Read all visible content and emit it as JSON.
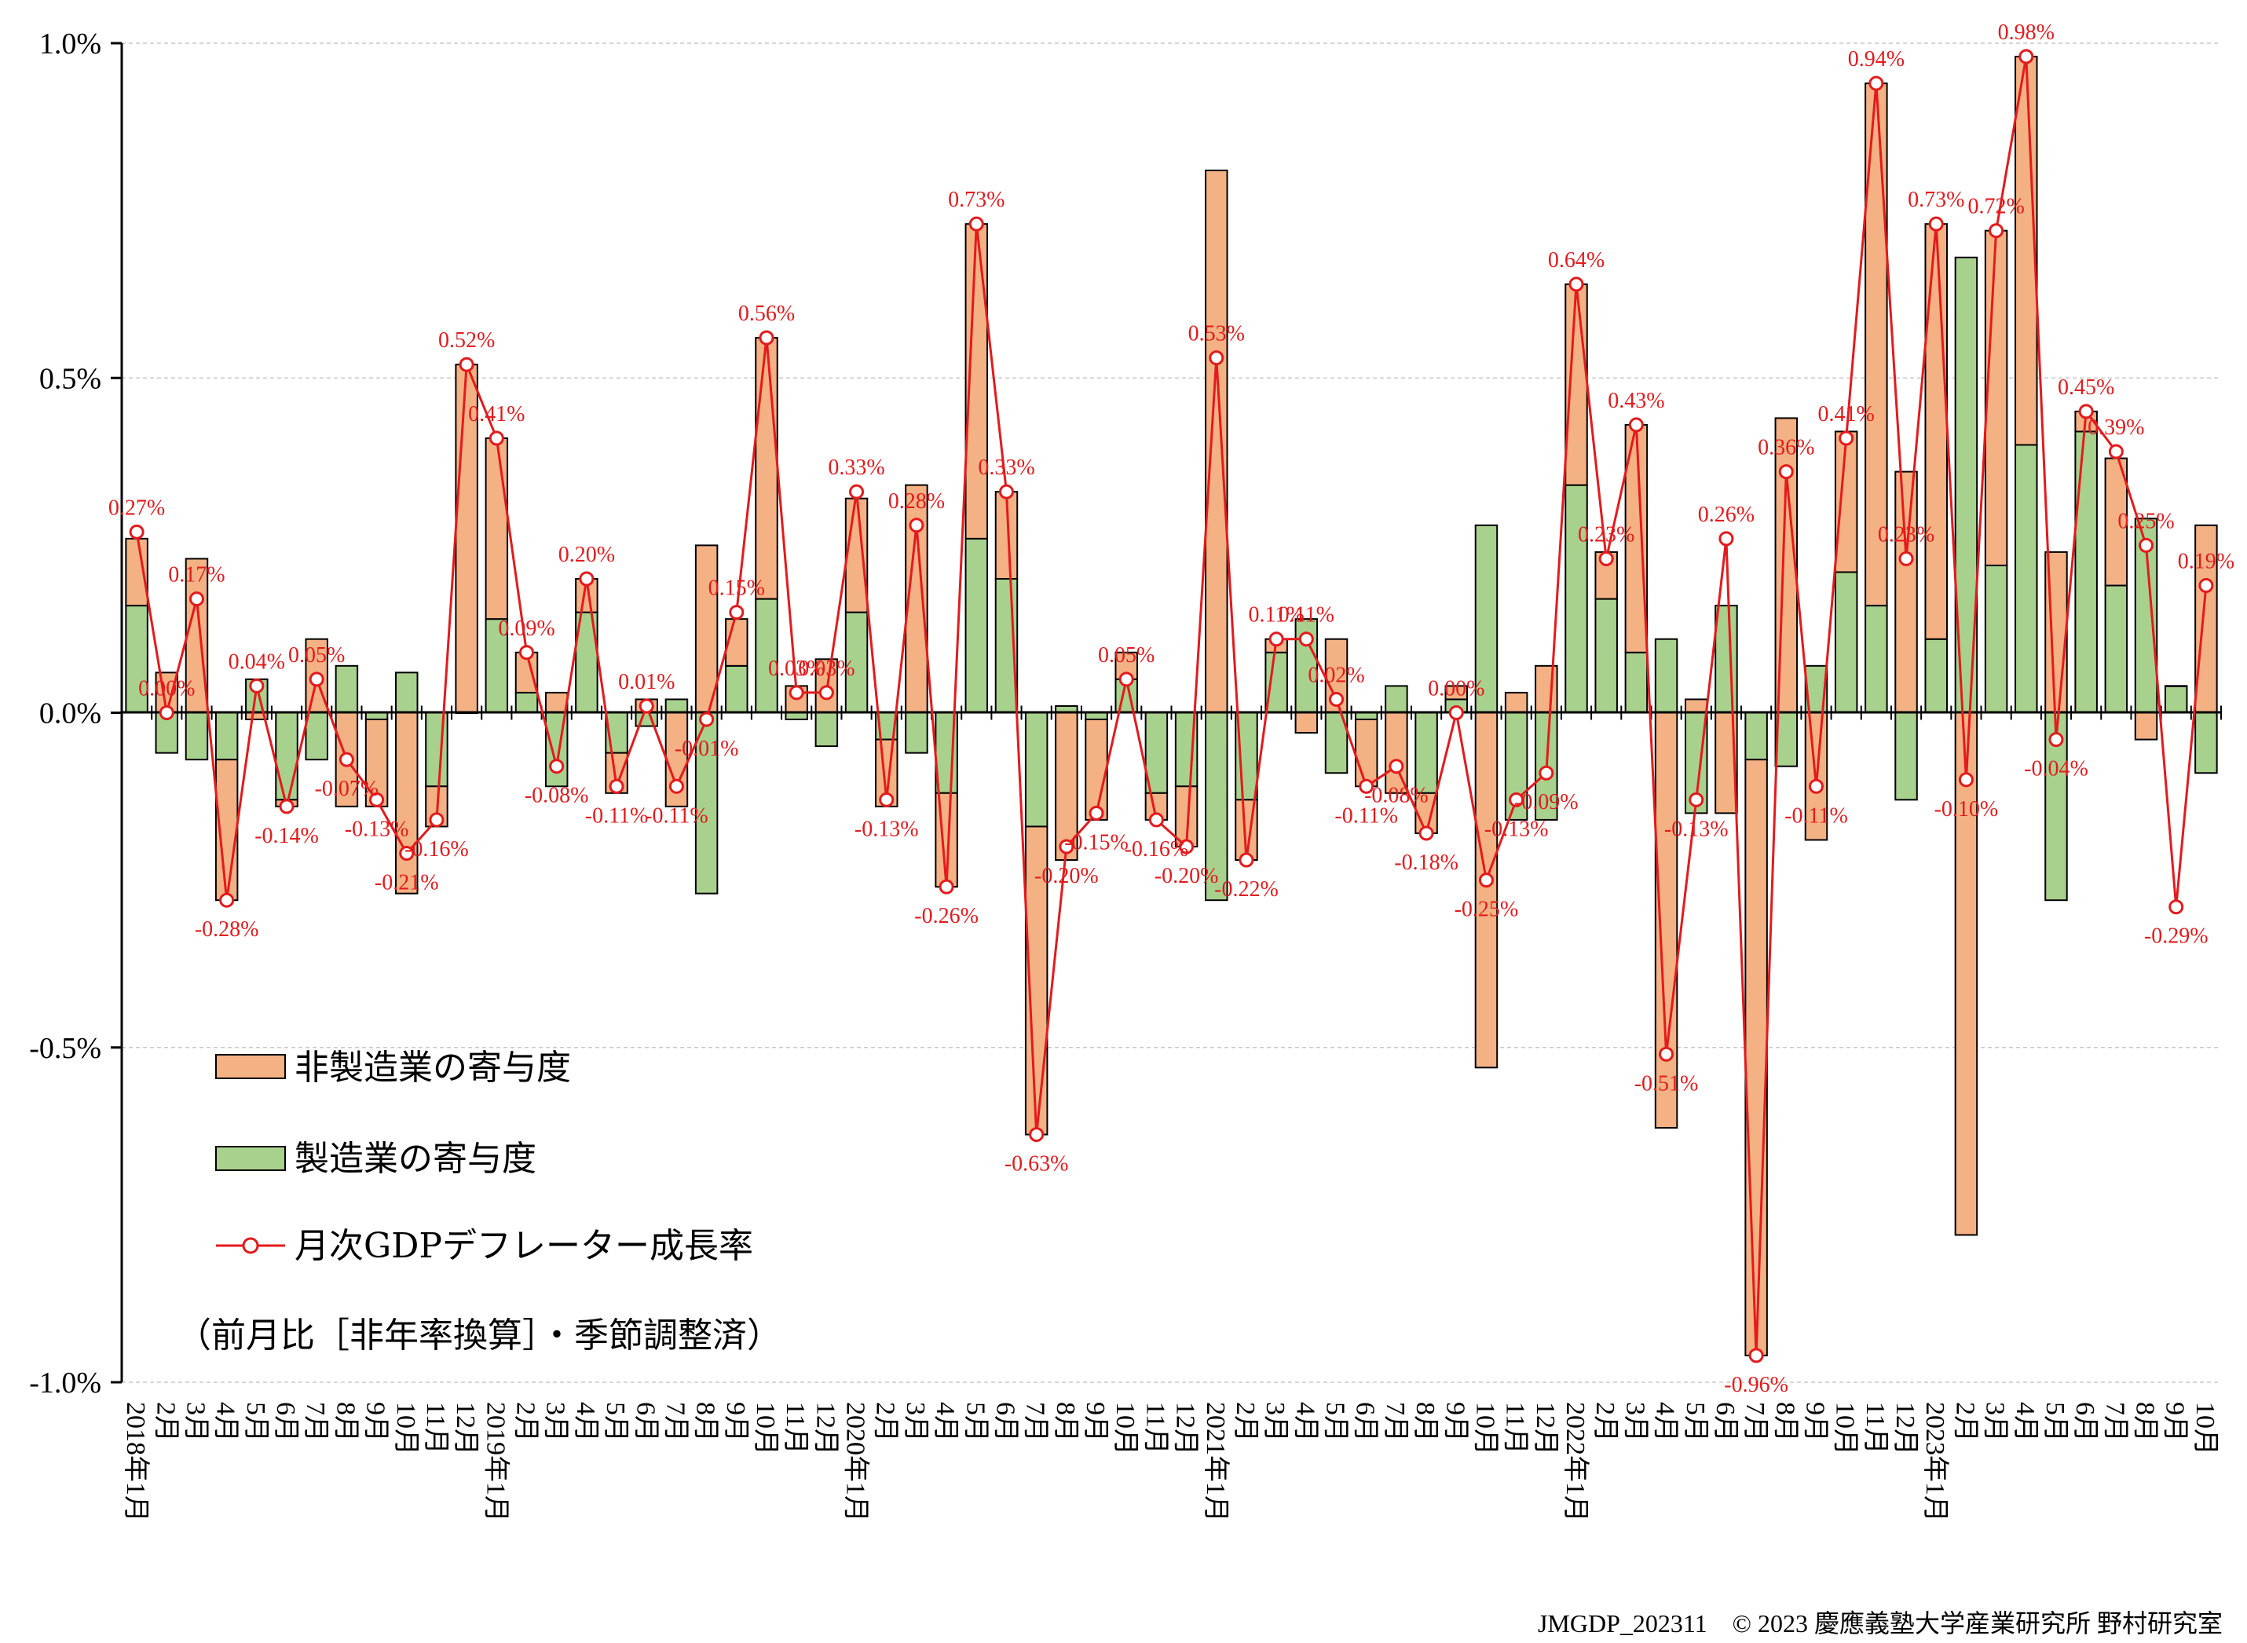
{
  "chart_data": {
    "type": "bar",
    "stacked": true,
    "ylim": [
      -1.0,
      1.0
    ],
    "y_ticks": [
      "1.0%",
      "0.5%",
      "0.0%",
      "-0.5%",
      "-1.0%"
    ],
    "y_tick_values": [
      1.0,
      0.5,
      0.0,
      -0.5,
      -1.0
    ],
    "categories": [
      "2018年1月",
      "2月",
      "3月",
      "4月",
      "5月",
      "6月",
      "7月",
      "8月",
      "9月",
      "10月",
      "11月",
      "12月",
      "2019年1月",
      "2月",
      "3月",
      "4月",
      "5月",
      "6月",
      "7月",
      "8月",
      "9月",
      "10月",
      "11月",
      "12月",
      "2020年1月",
      "2月",
      "3月",
      "4月",
      "5月",
      "6月",
      "7月",
      "8月",
      "9月",
      "10月",
      "11月",
      "12月",
      "2021年1月",
      "2月",
      "3月",
      "4月",
      "5月",
      "6月",
      "7月",
      "8月",
      "9月",
      "10月",
      "11月",
      "12月",
      "2022年1月",
      "2月",
      "3月",
      "4月",
      "5月",
      "6月",
      "7月",
      "8月",
      "9月",
      "10月",
      "11月",
      "12月",
      "2023年1月",
      "2月",
      "3月",
      "4月",
      "5月",
      "6月",
      "7月",
      "8月",
      "9月",
      "10月"
    ],
    "series": [
      {
        "name": "非製造業の寄与度",
        "kind": "bar",
        "color": "#f4b183",
        "values": [
          0.1,
          0.06,
          0.23,
          -0.21,
          -0.01,
          -0.01,
          0.11,
          -0.14,
          -0.13,
          -0.27,
          -0.06,
          0.52,
          0.27,
          0.06,
          0.03,
          0.05,
          -0.06,
          0.02,
          -0.14,
          0.25,
          0.07,
          0.39,
          0.04,
          0.08,
          0.17,
          -0.1,
          0.34,
          -0.14,
          0.47,
          0.13,
          -0.46,
          -0.22,
          -0.15,
          0.04,
          -0.04,
          -0.09,
          0.81,
          -0.09,
          0.02,
          -0.03,
          0.11,
          -0.1,
          -0.12,
          -0.06,
          0.02,
          -0.53,
          0.03,
          0.07,
          0.3,
          0.07,
          0.34,
          -0.62,
          0.02,
          -0.15,
          -0.89,
          0.44,
          -0.19,
          0.21,
          0.78,
          0.36,
          0.62,
          -0.78,
          0.5,
          0.58,
          0.24,
          0.03,
          0.19,
          -0.04,
          0.0,
          0.28
        ]
      },
      {
        "name": "製造業の寄与度",
        "kind": "bar",
        "color": "#a9d18e",
        "values": [
          0.16,
          -0.06,
          -0.07,
          -0.07,
          0.05,
          -0.13,
          -0.07,
          0.07,
          -0.01,
          0.06,
          -0.11,
          0.0,
          0.14,
          0.03,
          -0.11,
          0.15,
          -0.06,
          -0.02,
          0.02,
          -0.27,
          0.07,
          0.17,
          -0.01,
          -0.05,
          0.15,
          -0.04,
          -0.06,
          -0.12,
          0.26,
          0.2,
          -0.17,
          0.01,
          -0.01,
          0.05,
          -0.12,
          -0.11,
          -0.28,
          -0.13,
          0.09,
          0.14,
          -0.09,
          -0.01,
          0.04,
          -0.12,
          0.02,
          0.28,
          -0.16,
          -0.16,
          0.34,
          0.17,
          0.09,
          0.11,
          -0.15,
          0.16,
          -0.07,
          -0.08,
          0.07,
          0.21,
          0.16,
          -0.13,
          0.11,
          0.68,
          0.22,
          0.4,
          -0.28,
          0.42,
          0.19,
          0.29,
          0.04,
          -0.09
        ]
      },
      {
        "name": "月次GDPデフレーター成長率",
        "kind": "line",
        "color": "#e41a1c",
        "values": [
          0.27,
          0.0,
          0.17,
          -0.28,
          0.04,
          -0.14,
          0.05,
          -0.07,
          -0.13,
          -0.21,
          -0.16,
          0.52,
          0.41,
          0.09,
          -0.08,
          0.2,
          -0.11,
          0.01,
          -0.11,
          -0.01,
          0.15,
          0.56,
          0.03,
          0.03,
          0.33,
          -0.13,
          0.28,
          -0.26,
          0.73,
          0.33,
          -0.63,
          -0.2,
          -0.15,
          0.05,
          -0.16,
          -0.2,
          0.53,
          -0.22,
          0.11,
          0.11,
          0.02,
          -0.11,
          -0.08,
          -0.18,
          0.0,
          -0.25,
          -0.13,
          -0.09,
          0.64,
          0.23,
          0.43,
          -0.51,
          -0.13,
          0.26,
          -0.96,
          0.36,
          -0.11,
          0.41,
          0.94,
          0.23,
          0.73,
          -0.1,
          0.72,
          0.98,
          -0.04,
          0.45,
          0.39,
          0.25,
          -0.29,
          0.19
        ]
      }
    ],
    "data_labels": [
      "0.27%",
      "0.00%",
      "0.17%",
      "-0.28%",
      "0.04%",
      "-0.14%",
      "0.05%",
      "-0.07%",
      "-0.13%",
      "-0.21%",
      "-0.16%",
      "0.52%",
      "0.41%",
      "0.09%",
      "-0.08%",
      "0.20%",
      "-0.11%",
      "0.01%",
      "-0.11%",
      "-0.01%",
      "0.15%",
      "0.56%",
      "0.03%",
      "0.03%",
      "0.33%",
      "-0.13%",
      "0.28%",
      "-0.26%",
      "0.73%",
      "0.33%",
      "-0.63%",
      "-0.20%",
      "-0.15%",
      "0.05%",
      "-0.16%",
      "-0.20%",
      "0.53%",
      "-0.22%",
      "0.11%",
      "0.11%",
      "0.02%",
      "-0.11%",
      "-0.08%",
      "-0.18%",
      "0.00%",
      "-0.25%",
      "-0.13%",
      "-0.09%",
      "0.64%",
      "0.23%",
      "0.43%",
      "-0.51%",
      "-0.13%",
      "0.26%",
      "-0.96%",
      "0.36%",
      "-0.11%",
      "0.41%",
      "0.94%",
      "0.23%",
      "0.73%",
      "-0.10%",
      "0.72%",
      "0.98%",
      "-0.04%",
      "0.45%",
      "0.39%",
      "0.25%",
      "-0.29%",
      "0.19%"
    ],
    "legend": {
      "position": "lower-left",
      "entries": [
        "非製造業の寄与度",
        "製造業の寄与度",
        "月次GDPデフレーター成長率"
      ],
      "note": "（前月比［非年率換算］・季節調整済）"
    },
    "grid": true
  },
  "footer": "JMGDP_202311　© 2023 慶應義塾大学産業研究所 野村研究室"
}
